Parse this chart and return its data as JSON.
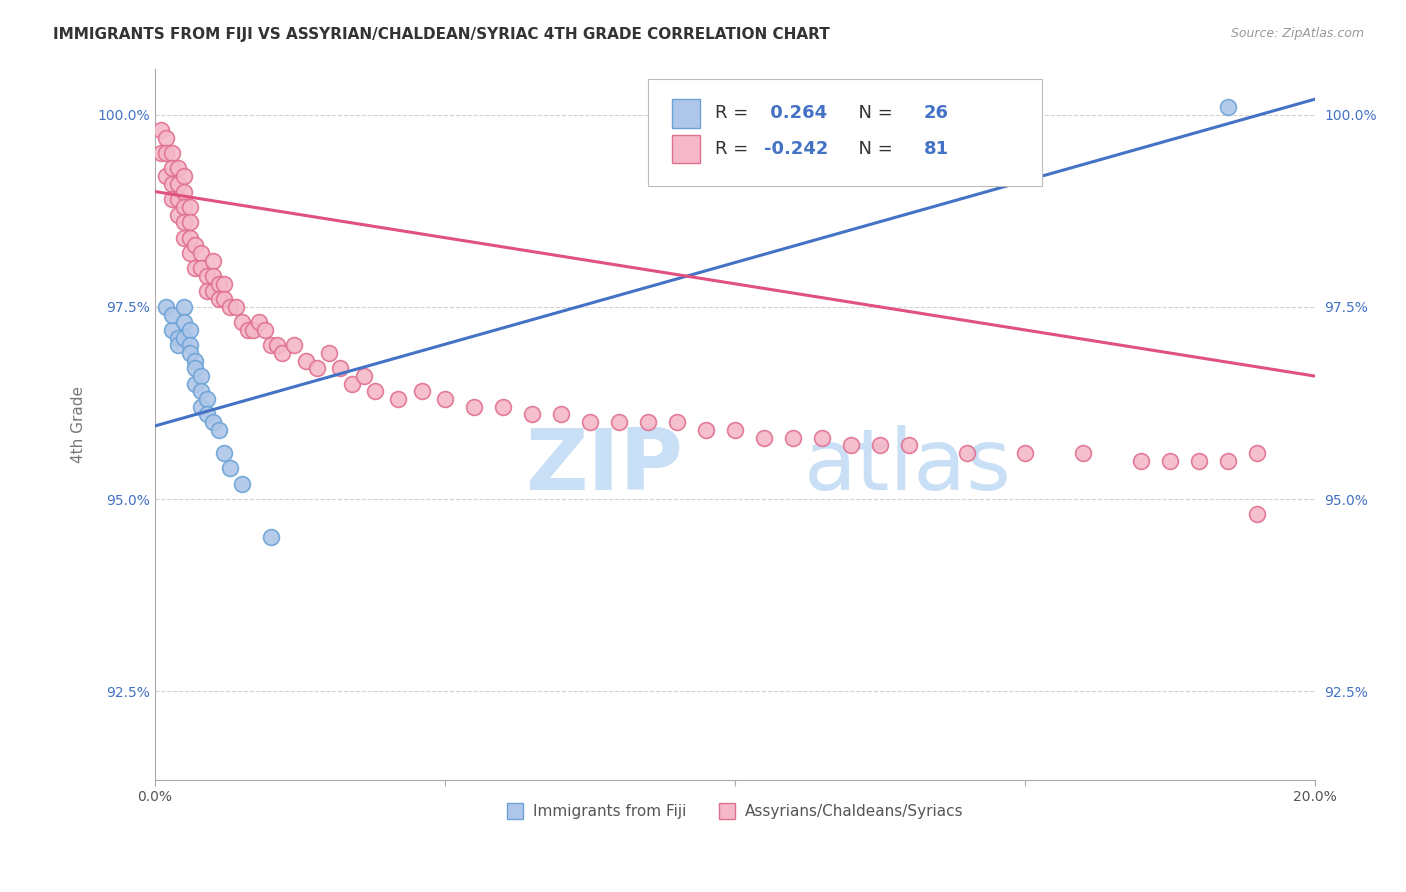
{
  "title": "IMMIGRANTS FROM FIJI VS ASSYRIAN/CHALDEAN/SYRIAC 4TH GRADE CORRELATION CHART",
  "source": "Source: ZipAtlas.com",
  "ylabel": "4th Grade",
  "xmin": 0.0,
  "xmax": 0.2,
  "ymin": 0.9135,
  "ymax": 1.006,
  "yticks": [
    0.925,
    0.95,
    0.975,
    1.0
  ],
  "ytick_labels": [
    "92.5%",
    "95.0%",
    "97.5%",
    "100.0%"
  ],
  "xticks": [
    0.0,
    0.05,
    0.1,
    0.15,
    0.2
  ],
  "xtick_labels": [
    "0.0%",
    "",
    "",
    "",
    "20.0%"
  ],
  "fiji_R": 0.264,
  "fiji_N": 26,
  "assyrian_R": -0.242,
  "assyrian_N": 81,
  "fiji_color": "#aec6e8",
  "fiji_edge": "#6ba3d6",
  "fiji_line_color": "#4472C4",
  "assyrian_color": "#f4b8c8",
  "assyrian_edge": "#e07090",
  "assyrian_line_color": "#e05080",
  "fiji_scatter_x": [
    0.002,
    0.003,
    0.003,
    0.004,
    0.004,
    0.005,
    0.005,
    0.005,
    0.006,
    0.006,
    0.006,
    0.007,
    0.007,
    0.007,
    0.008,
    0.008,
    0.008,
    0.009,
    0.009,
    0.01,
    0.011,
    0.012,
    0.013,
    0.015,
    0.02,
    0.185
  ],
  "fiji_scatter_y": [
    0.975,
    0.972,
    0.974,
    0.971,
    0.97,
    0.975,
    0.973,
    0.971,
    0.972,
    0.97,
    0.969,
    0.968,
    0.967,
    0.965,
    0.966,
    0.964,
    0.962,
    0.963,
    0.961,
    0.96,
    0.959,
    0.956,
    0.954,
    0.952,
    0.945,
    1.001
  ],
  "assyrian_scatter_x": [
    0.001,
    0.001,
    0.002,
    0.002,
    0.002,
    0.003,
    0.003,
    0.003,
    0.003,
    0.004,
    0.004,
    0.004,
    0.004,
    0.005,
    0.005,
    0.005,
    0.005,
    0.005,
    0.006,
    0.006,
    0.006,
    0.006,
    0.007,
    0.007,
    0.008,
    0.008,
    0.009,
    0.009,
    0.01,
    0.01,
    0.01,
    0.011,
    0.011,
    0.012,
    0.012,
    0.013,
    0.014,
    0.015,
    0.016,
    0.017,
    0.018,
    0.019,
    0.02,
    0.021,
    0.022,
    0.024,
    0.026,
    0.028,
    0.03,
    0.032,
    0.034,
    0.036,
    0.038,
    0.042,
    0.046,
    0.05,
    0.055,
    0.06,
    0.065,
    0.07,
    0.075,
    0.08,
    0.085,
    0.09,
    0.095,
    0.1,
    0.105,
    0.11,
    0.115,
    0.12,
    0.125,
    0.13,
    0.14,
    0.15,
    0.16,
    0.17,
    0.175,
    0.18,
    0.185,
    0.19,
    0.19
  ],
  "assyrian_scatter_y": [
    0.998,
    0.995,
    0.997,
    0.995,
    0.992,
    0.995,
    0.993,
    0.991,
    0.989,
    0.993,
    0.991,
    0.989,
    0.987,
    0.992,
    0.99,
    0.988,
    0.986,
    0.984,
    0.988,
    0.986,
    0.984,
    0.982,
    0.983,
    0.98,
    0.982,
    0.98,
    0.979,
    0.977,
    0.981,
    0.979,
    0.977,
    0.978,
    0.976,
    0.978,
    0.976,
    0.975,
    0.975,
    0.973,
    0.972,
    0.972,
    0.973,
    0.972,
    0.97,
    0.97,
    0.969,
    0.97,
    0.968,
    0.967,
    0.969,
    0.967,
    0.965,
    0.966,
    0.964,
    0.963,
    0.964,
    0.963,
    0.962,
    0.962,
    0.961,
    0.961,
    0.96,
    0.96,
    0.96,
    0.96,
    0.959,
    0.959,
    0.958,
    0.958,
    0.958,
    0.957,
    0.957,
    0.957,
    0.956,
    0.956,
    0.956,
    0.955,
    0.955,
    0.955,
    0.955,
    0.956,
    0.948
  ],
  "fiji_line_x0": 0.0,
  "fiji_line_y0": 0.9595,
  "fiji_line_x1": 0.2,
  "fiji_line_y1": 1.002,
  "ass_line_x0": 0.0,
  "ass_line_y0": 0.99,
  "ass_line_x1": 0.2,
  "ass_line_y1": 0.966,
  "watermark_zip": "ZIP",
  "watermark_atlas": "atlas",
  "watermark_color": "#ddeeff",
  "background_color": "#ffffff",
  "grid_color": "#cccccc"
}
